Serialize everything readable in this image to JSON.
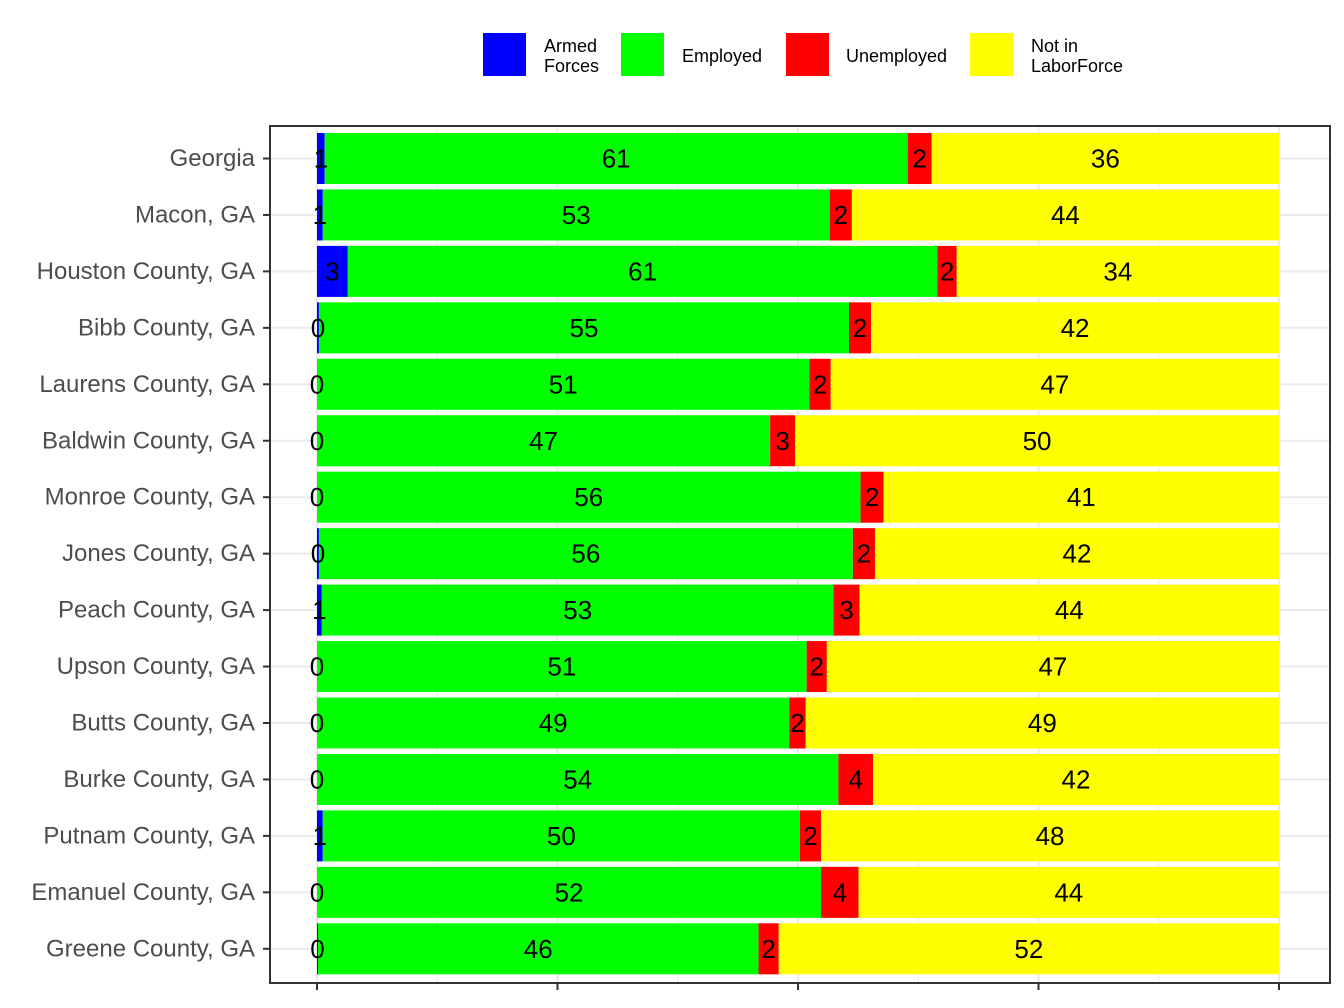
{
  "chart_data": {
    "type": "bar",
    "orientation": "horizontal",
    "stacked": true,
    "categories": [
      "Georgia",
      "Macon, GA",
      "Houston County, GA",
      "Bibb County, GA",
      "Laurens County, GA",
      "Baldwin County, GA",
      "Monroe County, GA",
      "Jones County, GA",
      "Peach County, GA",
      "Upson County, GA",
      "Butts County, GA",
      "Burke County, GA",
      "Putnam County, GA",
      "Emanuel County, GA",
      "Greene County, GA"
    ],
    "series": [
      {
        "name": "Armed Forces",
        "color": "#0000ff",
        "values": [
          0.8,
          0.6,
          3.2,
          0.2,
          0.0,
          0.0,
          0.0,
          0.2,
          0.5,
          0.0,
          0.0,
          0.0,
          0.6,
          0.0,
          0.1
        ],
        "labels": [
          "1",
          "1",
          "3",
          "0",
          "0",
          "0",
          "0",
          "0",
          "1",
          "0",
          "0",
          "0",
          "1",
          "0",
          "0"
        ]
      },
      {
        "name": "Employed",
        "color": "#00ff00",
        "values": [
          60.6,
          52.7,
          61.3,
          55.1,
          51.2,
          47.1,
          56.5,
          55.5,
          53.2,
          50.9,
          49.1,
          54.2,
          49.6,
          52.4,
          45.8
        ],
        "labels": [
          "61",
          "53",
          "61",
          "55",
          "51",
          "47",
          "56",
          "56",
          "53",
          "51",
          "49",
          "54",
          "50",
          "52",
          "46"
        ]
      },
      {
        "name": "Unemployed",
        "color": "#ff0000",
        "values": [
          2.5,
          2.3,
          2.0,
          2.3,
          2.2,
          2.6,
          2.4,
          2.3,
          2.7,
          2.1,
          1.7,
          3.6,
          2.2,
          3.9,
          2.1
        ],
        "labels": [
          "2",
          "2",
          "2",
          "2",
          "2",
          "3",
          "2",
          "2",
          "3",
          "2",
          "2",
          "4",
          "2",
          "4",
          "2"
        ]
      },
      {
        "name": "Not in LaborForce",
        "color": "#ffff00",
        "values": [
          36.1,
          44.4,
          33.5,
          42.4,
          46.6,
          50.3,
          41.1,
          42.0,
          43.6,
          47.0,
          49.2,
          42.2,
          47.6,
          43.7,
          52.0
        ],
        "labels": [
          "36",
          "44",
          "34",
          "42",
          "47",
          "50",
          "41",
          "42",
          "44",
          "47",
          "49",
          "42",
          "48",
          "44",
          "52"
        ]
      }
    ],
    "xlim": [
      0,
      100
    ],
    "legend": {
      "position": "top",
      "entries": [
        {
          "lines": [
            "Armed",
            "Forces"
          ],
          "color": "#0000ff"
        },
        {
          "lines": [
            "Employed"
          ],
          "color": "#00ff00"
        },
        {
          "lines": [
            "Unemployed"
          ],
          "color": "#ff0000"
        },
        {
          "lines": [
            "Not in",
            "LaborForce"
          ],
          "color": "#ffff00"
        }
      ]
    },
    "grid": true,
    "gridline_color": "#ebebeb",
    "border_color": "#333333"
  }
}
